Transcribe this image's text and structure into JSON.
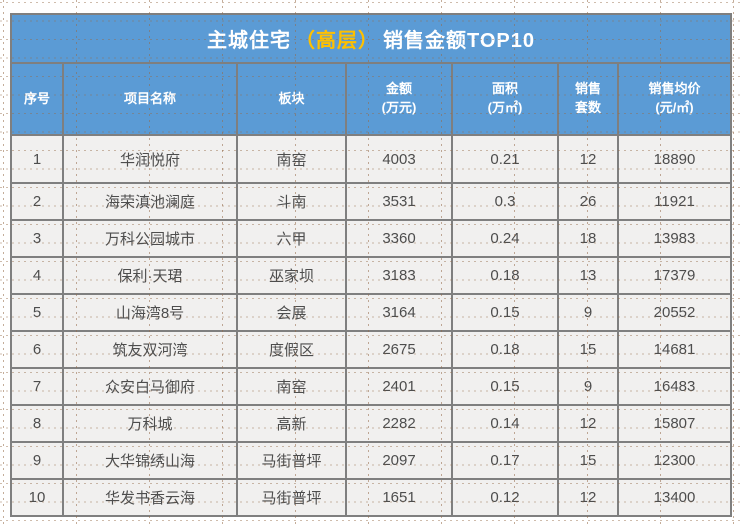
{
  "title": {
    "prefix": "主城住宅",
    "highlight": "（高层）",
    "suffix": "销售金额TOP10"
  },
  "colors": {
    "header_blue": "#5b9bd5",
    "title_highlight_yellow": "#ffc000",
    "border_gray": "#7f7f7f",
    "cell_bg": "#f1f0ef",
    "cell_text": "#4d4d4d"
  },
  "table": {
    "headers": [
      "序号",
      "项目名称",
      "板块",
      "金额\n(万元)",
      "面积\n(万㎡)",
      "销售\n套数",
      "销售均价\n(元/㎡)"
    ],
    "rows": [
      [
        "1",
        "华润悦府",
        "南窑",
        "4003",
        "0.21",
        "12",
        "18890"
      ],
      [
        "2",
        "海荣滇池澜庭",
        "斗南",
        "3531",
        "0.3",
        "26",
        "11921"
      ],
      [
        "3",
        "万科公园城市",
        "六甲",
        "3360",
        "0.24",
        "18",
        "13983"
      ],
      [
        "4",
        "保利·天珺",
        "巫家坝",
        "3183",
        "0.18",
        "13",
        "17379"
      ],
      [
        "5",
        "山海湾8号",
        "会展",
        "3164",
        "0.15",
        "9",
        "20552"
      ],
      [
        "6",
        "筑友双河湾",
        "度假区",
        "2675",
        "0.18",
        "15",
        "14681"
      ],
      [
        "7",
        "众安白马御府",
        "南窑",
        "2401",
        "0.15",
        "9",
        "16483"
      ],
      [
        "8",
        "万科城",
        "高新",
        "2282",
        "0.14",
        "12",
        "15807"
      ],
      [
        "9",
        "大华锦绣山海",
        "马街普坪",
        "2097",
        "0.17",
        "15",
        "12300"
      ],
      [
        "10",
        "华发书香云海",
        "马街普坪",
        "1651",
        "0.12",
        "12",
        "13400"
      ]
    ]
  }
}
